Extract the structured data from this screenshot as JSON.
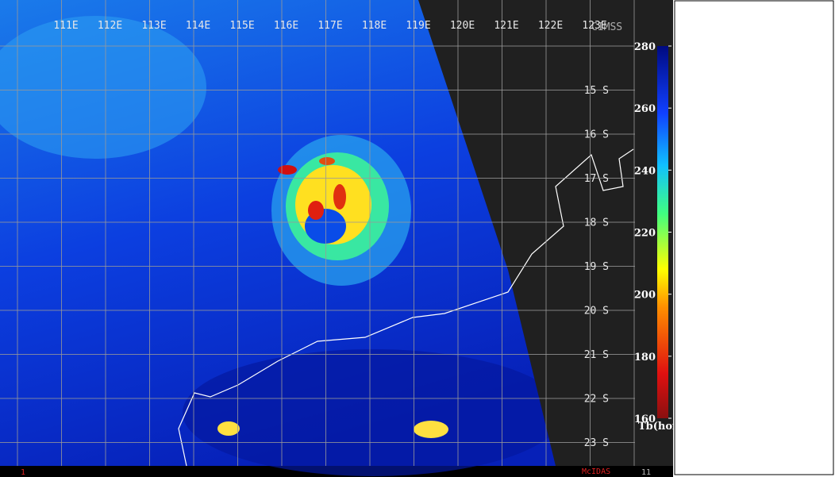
{
  "map": {
    "lon_labels": [
      "111E",
      "112E",
      "113E",
      "114E",
      "115E",
      "116E",
      "117E",
      "118E",
      "119E",
      "120E",
      "121E",
      "122E",
      "123E"
    ],
    "lat_labels": [
      "15 S",
      "16 S",
      "17 S",
      "18 S",
      "19 S",
      "20 S",
      "21 S",
      "22 S",
      "23 S"
    ],
    "logo": "CIMSS"
  },
  "colorbar": {
    "title": "Tb(horz)",
    "range": [
      160,
      280
    ],
    "ticks": [
      280,
      260,
      240,
      220,
      200,
      180,
      160
    ]
  },
  "footer": {
    "left": "1",
    "center": "McIDAS",
    "right": "11"
  }
}
